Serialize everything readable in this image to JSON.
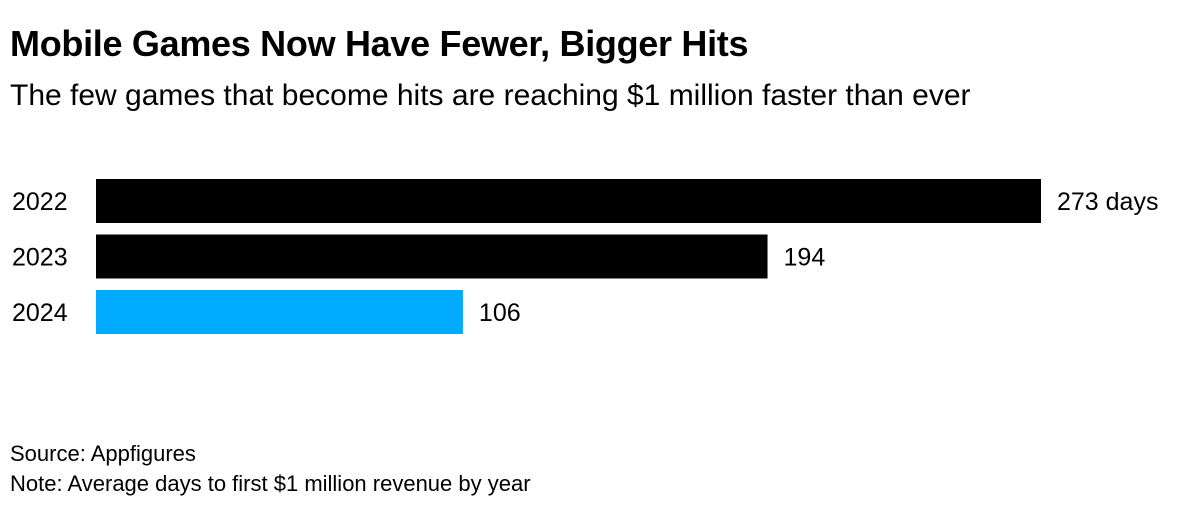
{
  "title": "Mobile Games Now Have Fewer, Bigger Hits",
  "subtitle": "The few games that become hits are reaching $1 million faster than ever",
  "footer": {
    "source": "Source: Appfigures",
    "note": "Note: Average days to first $1 million revenue by year"
  },
  "chart_data": {
    "type": "bar",
    "orientation": "horizontal",
    "categories": [
      "2022",
      "2023",
      "2024"
    ],
    "values": [
      273,
      194,
      106
    ],
    "value_labels": [
      "273 days",
      "194",
      "106"
    ],
    "colors": [
      "#000000",
      "#000000",
      "#00aaff"
    ],
    "xlim": [
      0,
      273
    ],
    "grid": false,
    "legend": "none"
  }
}
